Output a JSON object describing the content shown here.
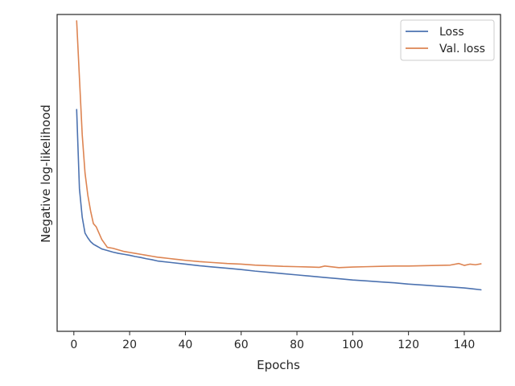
{
  "chart_data": {
    "type": "line",
    "xlabel": "Epochs",
    "ylabel": "Negative log-likelihood",
    "xlim": [
      -6,
      153
    ],
    "ylim": [
      0.0,
      1.0
    ],
    "y_ticks_shown": false,
    "x_ticks": [
      0,
      20,
      40,
      60,
      80,
      100,
      120,
      140
    ],
    "x_tick_labels": [
      "0",
      "20",
      "40",
      "60",
      "80",
      "100",
      "120",
      "140"
    ],
    "grid": false,
    "legend_position": "upper-right",
    "series": [
      {
        "name": "Loss",
        "color": "#4c72b0",
        "x": [
          1,
          2,
          3,
          4,
          5,
          6,
          7,
          8,
          9,
          10,
          12,
          14,
          16,
          18,
          20,
          22,
          24,
          26,
          28,
          30,
          35,
          40,
          45,
          50,
          55,
          60,
          65,
          70,
          75,
          80,
          85,
          90,
          95,
          100,
          105,
          110,
          115,
          120,
          125,
          130,
          135,
          140,
          143,
          146
        ],
        "y": [
          0.7,
          0.45,
          0.36,
          0.31,
          0.295,
          0.283,
          0.275,
          0.27,
          0.265,
          0.26,
          0.255,
          0.25,
          0.246,
          0.243,
          0.24,
          0.236,
          0.233,
          0.229,
          0.226,
          0.222,
          0.217,
          0.212,
          0.207,
          0.203,
          0.199,
          0.195,
          0.19,
          0.186,
          0.182,
          0.178,
          0.174,
          0.17,
          0.166,
          0.162,
          0.159,
          0.156,
          0.153,
          0.149,
          0.146,
          0.143,
          0.14,
          0.137,
          0.134,
          0.131
        ]
      },
      {
        "name": "Val. loss",
        "color": "#dd8452",
        "x": [
          1,
          2,
          3,
          4,
          5,
          6,
          7,
          8,
          9,
          10,
          12,
          14,
          16,
          18,
          20,
          22,
          24,
          26,
          28,
          30,
          32,
          34,
          36,
          38,
          40,
          45,
          50,
          55,
          60,
          65,
          70,
          75,
          80,
          85,
          88,
          90,
          95,
          100,
          105,
          110,
          115,
          120,
          125,
          130,
          135,
          138,
          140,
          142,
          144,
          146
        ],
        "y": [
          0.98,
          0.8,
          0.62,
          0.5,
          0.43,
          0.38,
          0.34,
          0.33,
          0.31,
          0.29,
          0.265,
          0.262,
          0.257,
          0.252,
          0.249,
          0.246,
          0.243,
          0.24,
          0.237,
          0.234,
          0.232,
          0.23,
          0.228,
          0.226,
          0.224,
          0.22,
          0.217,
          0.214,
          0.212,
          0.209,
          0.207,
          0.205,
          0.204,
          0.203,
          0.202,
          0.206,
          0.201,
          0.203,
          0.204,
          0.205,
          0.206,
          0.206,
          0.207,
          0.208,
          0.209,
          0.214,
          0.208,
          0.212,
          0.21,
          0.213
        ]
      }
    ]
  }
}
